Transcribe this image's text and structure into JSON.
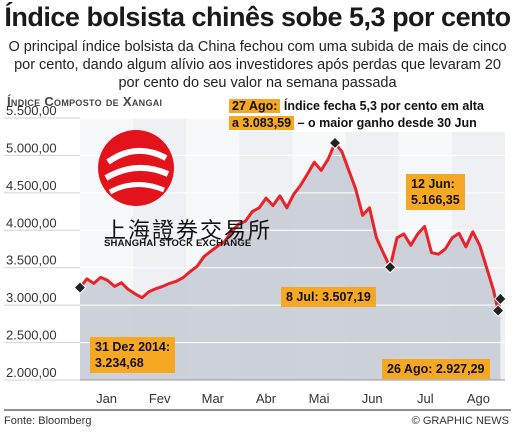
{
  "title": "Índice bolsista chinês sobe 5,3 por cento",
  "subtitle": "O principal índice bolsista da China fechou com uma subida de mais de cinco por cento, dando algum alívio aos investidores após perdas que levaram 20 por cento do seu valor na semana passada",
  "chart_label": "Índice Composto de Xangai",
  "logo": {
    "chinese": "上海證券交易所",
    "english": "SHANGHAI STOCK EXCHANGE"
  },
  "annotations": {
    "a27_line1_pre": "27 Ago:",
    "a27_line1_post": " Índice fecha 5,3 por cento em alta",
    "a27_line2_pre": "a 3.083,59",
    "a27_line2_post": " – o maior ganho desde 30 Jun",
    "jun12_l1": "12 Jun:",
    "jun12_l2": "5.166,35",
    "jul8": "8 Jul: 3.507,19",
    "dec31_l1": "31 Dez 2014:",
    "dec31_l2": "3.234,68",
    "aug26": "26 Ago: 2.927,29"
  },
  "footer": {
    "source": "Fonte: Bloomberg",
    "credit": "© GRAPHIC NEWS"
  },
  "colors": {
    "line": "#e8232a",
    "area": "#c6cad4",
    "accent": "#f7a823",
    "grid": "#ffffff"
  },
  "chart_data": {
    "type": "area",
    "ylim": [
      2000,
      5500
    ],
    "yticks": [
      "5.500,00",
      "5.000,00",
      "4.500,00",
      "4.000,00",
      "3.500,00",
      "3.000,00",
      "2.500,00",
      "2.000,00"
    ],
    "ytick_values": [
      5500,
      5000,
      4500,
      4000,
      3500,
      3000,
      2500,
      2000
    ],
    "months": [
      "Jan",
      "Fev",
      "Mar",
      "Abr",
      "Mai",
      "Jun",
      "Jul",
      "Ago"
    ],
    "x_unit": "trading day index (0 = 31 Dez 2014)",
    "series": [
      {
        "values": [
          [
            0,
            3235
          ],
          [
            3,
            3350
          ],
          [
            6,
            3290
          ],
          [
            9,
            3370
          ],
          [
            12,
            3330
          ],
          [
            15,
            3250
          ],
          [
            18,
            3300
          ],
          [
            21,
            3210
          ],
          [
            24,
            3150
          ],
          [
            27,
            3100
          ],
          [
            30,
            3180
          ],
          [
            33,
            3220
          ],
          [
            36,
            3250
          ],
          [
            39,
            3290
          ],
          [
            42,
            3320
          ],
          [
            45,
            3370
          ],
          [
            48,
            3450
          ],
          [
            51,
            3520
          ],
          [
            54,
            3650
          ],
          [
            57,
            3720
          ],
          [
            60,
            3790
          ],
          [
            63,
            3850
          ],
          [
            66,
            3980
          ],
          [
            69,
            4080
          ],
          [
            72,
            4120
          ],
          [
            75,
            4250
          ],
          [
            78,
            4300
          ],
          [
            81,
            4430
          ],
          [
            84,
            4330
          ],
          [
            87,
            4460
          ],
          [
            90,
            4300
          ],
          [
            93,
            4480
          ],
          [
            96,
            4600
          ],
          [
            99,
            4750
          ],
          [
            102,
            4910
          ],
          [
            105,
            4800
          ],
          [
            108,
            4950
          ],
          [
            111,
            5166
          ],
          [
            114,
            5050
          ],
          [
            117,
            4800
          ],
          [
            120,
            4550
          ],
          [
            123,
            4200
          ],
          [
            126,
            4300
          ],
          [
            129,
            3900
          ],
          [
            132,
            3700
          ],
          [
            135,
            3507
          ],
          [
            138,
            3900
          ],
          [
            141,
            3950
          ],
          [
            144,
            3800
          ],
          [
            147,
            3950
          ],
          [
            150,
            4050
          ],
          [
            153,
            3700
          ],
          [
            156,
            3680
          ],
          [
            159,
            3750
          ],
          [
            162,
            3900
          ],
          [
            165,
            3960
          ],
          [
            168,
            3780
          ],
          [
            171,
            3980
          ],
          [
            174,
            3800
          ],
          [
            177,
            3500
          ],
          [
            180,
            3200
          ],
          [
            182,
            2927
          ],
          [
            183,
            3084
          ]
        ]
      }
    ],
    "markers": [
      {
        "x": 0,
        "y": 3234.68
      },
      {
        "x": 111,
        "y": 5166.35
      },
      {
        "x": 135,
        "y": 3507.19
      },
      {
        "x": 182,
        "y": 2927.29
      },
      {
        "x": 183,
        "y": 3083.59
      }
    ]
  }
}
